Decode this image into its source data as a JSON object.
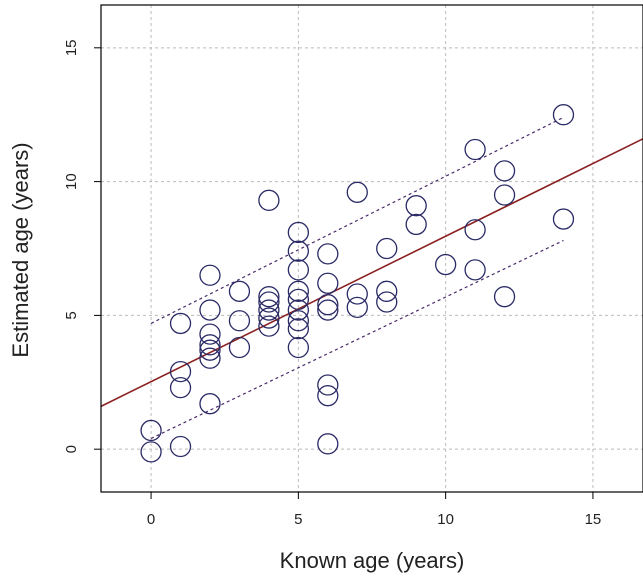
{
  "chart_data": {
    "type": "scatter",
    "title": "",
    "xlabel": "Known age (years)",
    "ylabel": "Estimated age (years)",
    "xlim": [
      -1.7,
      16.7
    ],
    "ylim": [
      -1.6,
      16.6
    ],
    "xticks": [
      0,
      5,
      10,
      15
    ],
    "yticks": [
      0,
      5,
      10,
      15
    ],
    "grid": true,
    "legend": "none",
    "colors": {
      "points": "#2a2a66",
      "fit_line": "#8b2020",
      "band": "#4a2a6a",
      "grid": "#bbbbbb",
      "axes": "#000000"
    },
    "points": [
      {
        "x": 0,
        "y": 0.7
      },
      {
        "x": 0,
        "y": -0.1
      },
      {
        "x": 1,
        "y": 4.7
      },
      {
        "x": 1,
        "y": 2.9
      },
      {
        "x": 1,
        "y": 2.3
      },
      {
        "x": 1,
        "y": 0.1
      },
      {
        "x": 2,
        "y": 6.5
      },
      {
        "x": 2,
        "y": 5.2
      },
      {
        "x": 2,
        "y": 4.3
      },
      {
        "x": 2,
        "y": 3.9
      },
      {
        "x": 2,
        "y": 3.7
      },
      {
        "x": 2,
        "y": 3.4
      },
      {
        "x": 2,
        "y": 1.7
      },
      {
        "x": 3,
        "y": 5.9
      },
      {
        "x": 3,
        "y": 4.8
      },
      {
        "x": 3,
        "y": 3.8
      },
      {
        "x": 4,
        "y": 9.3
      },
      {
        "x": 4,
        "y": 5.7
      },
      {
        "x": 4,
        "y": 5.5
      },
      {
        "x": 4,
        "y": 5.2
      },
      {
        "x": 4,
        "y": 4.9
      },
      {
        "x": 4,
        "y": 4.6
      },
      {
        "x": 5,
        "y": 8.1
      },
      {
        "x": 5,
        "y": 7.4
      },
      {
        "x": 5,
        "y": 6.7
      },
      {
        "x": 5,
        "y": 5.9
      },
      {
        "x": 5,
        "y": 5.6
      },
      {
        "x": 5,
        "y": 5.2
      },
      {
        "x": 5,
        "y": 4.8
      },
      {
        "x": 5,
        "y": 4.5
      },
      {
        "x": 5,
        "y": 3.8
      },
      {
        "x": 6,
        "y": 7.3
      },
      {
        "x": 6,
        "y": 6.2
      },
      {
        "x": 6,
        "y": 5.4
      },
      {
        "x": 6,
        "y": 5.2
      },
      {
        "x": 6,
        "y": 2.4
      },
      {
        "x": 6,
        "y": 2.0
      },
      {
        "x": 6,
        "y": 0.2
      },
      {
        "x": 7,
        "y": 9.6
      },
      {
        "x": 7,
        "y": 5.8
      },
      {
        "x": 7,
        "y": 5.3
      },
      {
        "x": 8,
        "y": 7.5
      },
      {
        "x": 8,
        "y": 5.9
      },
      {
        "x": 8,
        "y": 5.5
      },
      {
        "x": 9,
        "y": 9.1
      },
      {
        "x": 9,
        "y": 8.4
      },
      {
        "x": 10,
        "y": 6.9
      },
      {
        "x": 11,
        "y": 11.2
      },
      {
        "x": 11,
        "y": 8.2
      },
      {
        "x": 11,
        "y": 6.7
      },
      {
        "x": 12,
        "y": 10.4
      },
      {
        "x": 12,
        "y": 9.5
      },
      {
        "x": 12,
        "y": 5.7
      },
      {
        "x": 14,
        "y": 12.5
      },
      {
        "x": 14,
        "y": 8.6
      }
    ],
    "fit_line": {
      "x": [
        -1.7,
        16.7
      ],
      "y": [
        1.6,
        11.6
      ]
    },
    "upper_band": {
      "x": [
        0,
        14
      ],
      "y": [
        4.7,
        12.4
      ]
    },
    "lower_band": {
      "x": [
        0,
        14
      ],
      "y": [
        0.4,
        7.8
      ]
    }
  }
}
